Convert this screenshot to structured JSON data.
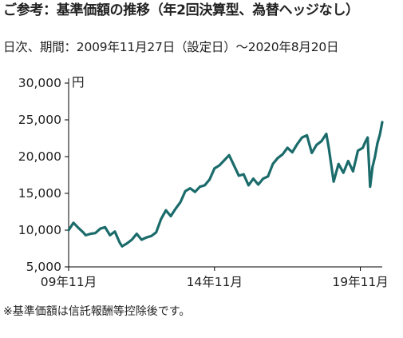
{
  "header": {
    "title": "ご参考：基準価額の推移（年2回決算型、為替ヘッジなし）",
    "subtitle": "日次、期間：2009年11月27日（設定日）～2020年8月20日"
  },
  "footnote": "※基準価額は信託報酬等控除後です。",
  "colors": {
    "line": "#1b6b6b",
    "axis": "#000000",
    "text": "#222222"
  },
  "chart_data": {
    "type": "line",
    "title": "",
    "xlabel": "",
    "ylabel": "円",
    "xlim": [
      "2009-11",
      "2020-08"
    ],
    "ylim": [
      5000,
      30000
    ],
    "yticks": [
      5000,
      10000,
      15000,
      20000,
      25000,
      30000
    ],
    "ytick_labels": [
      "5,000",
      "10,000",
      "15,000",
      "20,000",
      "25,000",
      "30,000"
    ],
    "xticks": [
      "2009-11",
      "2014-11",
      "2019-11"
    ],
    "xtick_labels": [
      "09年11月",
      "14年11月",
      "19年11月"
    ],
    "grid": false,
    "legend": "none",
    "series": [
      {
        "x": [
          "2009-11",
          "2010-01",
          "2010-03",
          "2010-05",
          "2010-06",
          "2010-08",
          "2010-10",
          "2010-12",
          "2011-02",
          "2011-04",
          "2011-06",
          "2011-08",
          "2011-09",
          "2011-11",
          "2012-01",
          "2012-03",
          "2012-05",
          "2012-07",
          "2012-09",
          "2012-11",
          "2013-01",
          "2013-03",
          "2013-05",
          "2013-07",
          "2013-09",
          "2013-11",
          "2014-01",
          "2014-03",
          "2014-05",
          "2014-07",
          "2014-09",
          "2014-11",
          "2015-01",
          "2015-03",
          "2015-05",
          "2015-07",
          "2015-09",
          "2015-11",
          "2016-01",
          "2016-03",
          "2016-05",
          "2016-07",
          "2016-09",
          "2016-11",
          "2017-01",
          "2017-03",
          "2017-05",
          "2017-07",
          "2017-09",
          "2017-11",
          "2018-01",
          "2018-03",
          "2018-05",
          "2018-07",
          "2018-09",
          "2018-10",
          "2018-12",
          "2019-02",
          "2019-04",
          "2019-06",
          "2019-08",
          "2019-10",
          "2019-12",
          "2020-01",
          "2020-02",
          "2020-03",
          "2020-04",
          "2020-05",
          "2020-06",
          "2020-07",
          "2020-08"
        ],
        "values": [
          10000,
          11000,
          10300,
          9700,
          9300,
          9500,
          9600,
          10200,
          10400,
          9300,
          9800,
          8300,
          7800,
          8200,
          8700,
          9500,
          8700,
          9000,
          9200,
          9700,
          11500,
          12700,
          11900,
          12900,
          13800,
          15300,
          15700,
          15200,
          15900,
          16100,
          16900,
          18400,
          18800,
          19500,
          20200,
          18800,
          17400,
          17600,
          16100,
          17000,
          16200,
          17000,
          17300,
          19000,
          19800,
          20300,
          21200,
          20600,
          21700,
          22600,
          22900,
          20500,
          21600,
          22100,
          23100,
          21200,
          16600,
          19000,
          17800,
          19400,
          18000,
          20800,
          21200,
          22000,
          22600,
          15900,
          18600,
          20000,
          21800,
          23000,
          24700
        ]
      }
    ]
  }
}
